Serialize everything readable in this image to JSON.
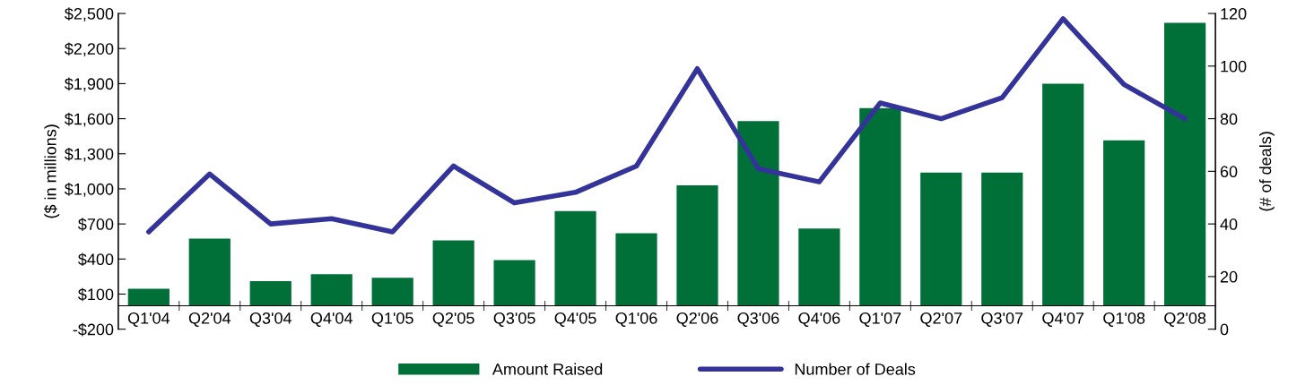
{
  "chart_data": {
    "type": "bar",
    "categories": [
      "Q1'04",
      "Q2'04",
      "Q3'04",
      "Q4'04",
      "Q1'05",
      "Q2'05",
      "Q3'05",
      "Q4'05",
      "Q1'06",
      "Q2'06",
      "Q3'06",
      "Q4'06",
      "Q1'07",
      "Q2'07",
      "Q3'07",
      "Q4'07",
      "Q1'08",
      "Q2'08"
    ],
    "series": [
      {
        "name": "Amount Raised",
        "color": "#007038",
        "values": [
          145,
          575,
          210,
          270,
          240,
          560,
          390,
          810,
          620,
          1030,
          1580,
          660,
          1690,
          1140,
          1140,
          1900,
          1415,
          2420
        ]
      },
      {
        "name": "Number of Deals",
        "type": "line",
        "axis": "y2",
        "color": "#333399",
        "values": [
          37,
          59,
          40,
          42,
          37,
          62,
          48,
          52,
          62,
          99,
          61,
          56,
          86,
          80,
          88,
          118,
          93,
          80
        ]
      }
    ],
    "ylabel": "($ in millions)",
    "y2label": "(# of deals)",
    "ylim": [
      -200,
      2500
    ],
    "yticks": [
      {
        "value": -200,
        "label": "-$200"
      },
      {
        "value": 100,
        "label": "$100"
      },
      {
        "value": 400,
        "label": "$400"
      },
      {
        "value": 700,
        "label": "$700"
      },
      {
        "value": 1000,
        "label": "$1,000"
      },
      {
        "value": 1300,
        "label": "$1,300"
      },
      {
        "value": 1600,
        "label": "$1,600"
      },
      {
        "value": 1900,
        "label": "$1,900"
      },
      {
        "value": 2200,
        "label": "$2,200"
      },
      {
        "value": 2500,
        "label": "$2,500"
      }
    ],
    "y2lim": [
      0,
      120
    ],
    "y2ticks": [
      0,
      20,
      40,
      60,
      80,
      100,
      120
    ],
    "legend": "bottom",
    "grid": false,
    "marker": "none",
    "line_style": "solid"
  }
}
